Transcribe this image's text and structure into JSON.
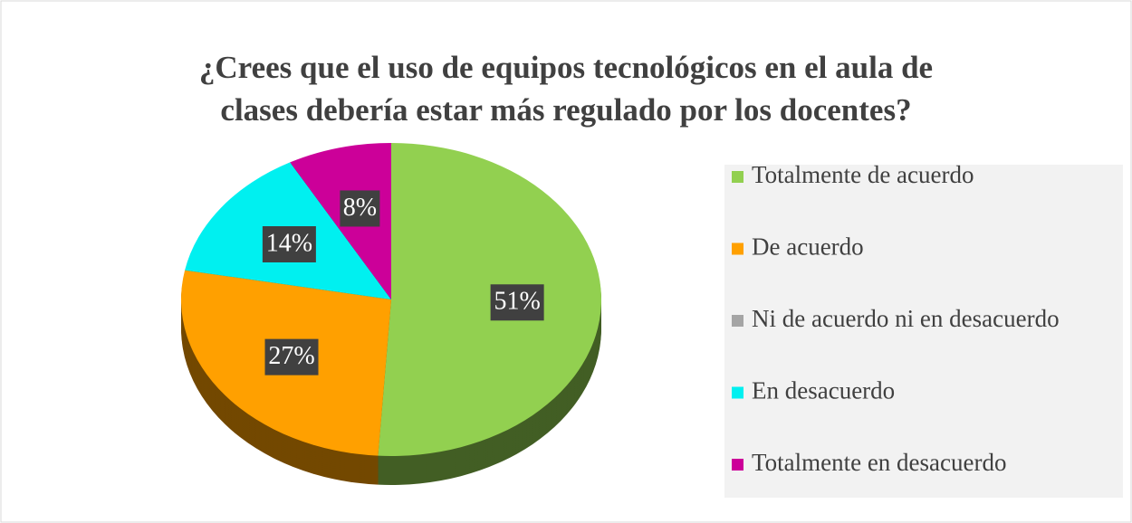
{
  "chart_data": {
    "type": "pie",
    "title": [
      "¿Crees que el uso de equipos tecnológicos en el aula de",
      "clases debería estar más regulado por los docentes?"
    ],
    "categories": [
      "Totalmente de acuerdo",
      "De acuerdo",
      "Ni de acuerdo ni en desacuerdo",
      "En desacuerdo",
      "Totalmente en desacuerdo"
    ],
    "values": [
      51,
      27,
      0,
      14,
      8
    ],
    "value_labels": [
      "51%",
      "27%",
      null,
      "14%",
      "8%"
    ],
    "colors": [
      "#92d050",
      "#ffa000",
      "#a5a5a5",
      "#00f0f0",
      "#cc0099"
    ],
    "legend": "right"
  }
}
